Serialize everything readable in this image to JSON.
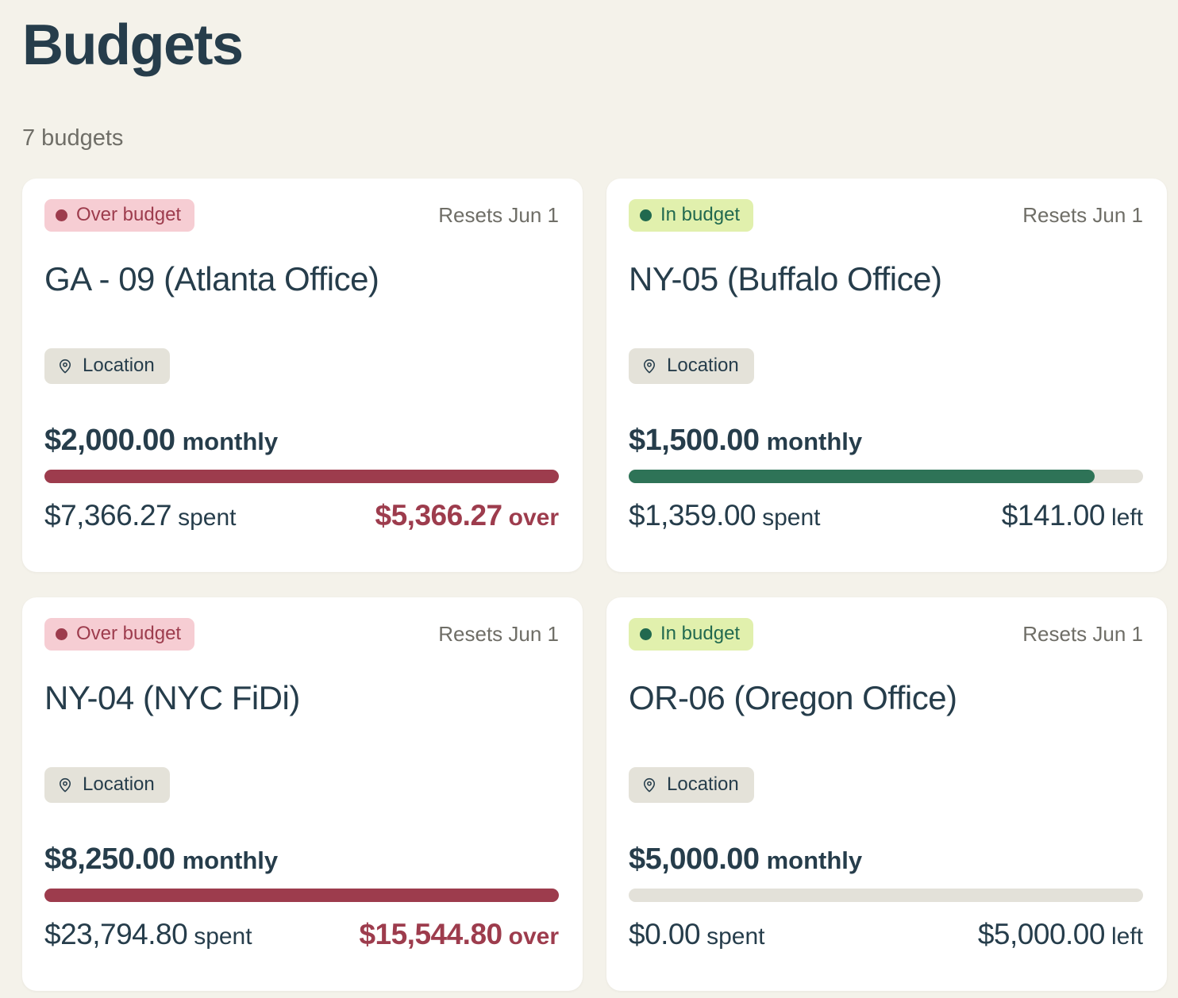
{
  "page": {
    "title": "Budgets",
    "subtitle": "7 budgets"
  },
  "colors": {
    "page_background": "#f4f2ea",
    "card_background": "#ffffff",
    "text_primary": "#263d4b",
    "text_muted": "#6f6e67",
    "over_accent": "#9d3c4d",
    "over_badge_background": "#f6cdd3",
    "in_badge_background": "#e1f0ad",
    "in_badge_text": "#21694f",
    "in_bar_fill": "#2e7357",
    "progress_track": "#e3e1d9",
    "location_chip_background": "#e4e2d9"
  },
  "cards": [
    {
      "status": "over",
      "status_label": "Over budget",
      "resets": "Resets Jun 1",
      "name": "GA - 09 (Atlanta Office)",
      "tag": "Location",
      "amount": "$2,000.00",
      "period": "monthly",
      "spent_value": "$7,366.27",
      "spent_label": "spent",
      "remaining_value": "$5,366.27",
      "remaining_label": "over",
      "progress_pct": 100
    },
    {
      "status": "in",
      "status_label": "In budget",
      "resets": "Resets Jun 1",
      "name": "NY-05 (Buffalo Office)",
      "tag": "Location",
      "amount": "$1,500.00",
      "period": "monthly",
      "spent_value": "$1,359.00",
      "spent_label": "spent",
      "remaining_value": "$141.00",
      "remaining_label": "left",
      "progress_pct": 90.6
    },
    {
      "status": "over",
      "status_label": "Over budget",
      "resets": "Resets Jun 1",
      "name": "NY-04 (NYC FiDi)",
      "tag": "Location",
      "amount": "$8,250.00",
      "period": "monthly",
      "spent_value": "$23,794.80",
      "spent_label": "spent",
      "remaining_value": "$15,544.80",
      "remaining_label": "over",
      "progress_pct": 100
    },
    {
      "status": "in",
      "status_label": "In budget",
      "resets": "Resets Jun 1",
      "name": "OR-06 (Oregon Office)",
      "tag": "Location",
      "amount": "$5,000.00",
      "period": "monthly",
      "spent_value": "$0.00",
      "spent_label": "spent",
      "remaining_value": "$5,000.00",
      "remaining_label": "left",
      "progress_pct": 0
    }
  ]
}
